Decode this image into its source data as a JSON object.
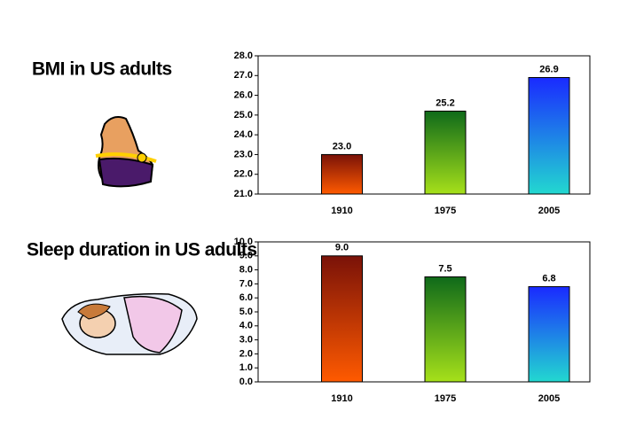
{
  "chart_data": [
    {
      "type": "bar",
      "title": "BMI in US adults",
      "categories": [
        "1910",
        "1975",
        "2005"
      ],
      "values": [
        23.0,
        25.2,
        26.9
      ],
      "value_labels": [
        "23.0",
        "25.2",
        "26.9"
      ],
      "colors": [
        [
          "#7a1208",
          "#ff5a00"
        ],
        [
          "#0f6a1a",
          "#a6e01a"
        ],
        [
          "#1a2aff",
          "#22d8d0"
        ]
      ],
      "ylim": [
        21,
        28
      ],
      "yticks": [
        {
          "value": 21,
          "label": "21.0"
        },
        {
          "value": 22,
          "label": "22.0"
        },
        {
          "value": 23,
          "label": "23.0"
        },
        {
          "value": 24,
          "label": "24.0"
        },
        {
          "value": 25,
          "label": "25.0"
        },
        {
          "value": 26,
          "label": "26.0"
        },
        {
          "value": 27,
          "label": "27.0"
        },
        {
          "value": 28,
          "label": "28.0"
        }
      ]
    },
    {
      "type": "bar",
      "title": "Sleep duration in US adults",
      "categories": [
        "1910",
        "1975",
        "2005"
      ],
      "values": [
        9.0,
        7.5,
        6.8
      ],
      "value_labels": [
        "9.0",
        "7.5",
        "6.8"
      ],
      "colors": [
        [
          "#7a1208",
          "#ff5a00"
        ],
        [
          "#0f6a1a",
          "#a6e01a"
        ],
        [
          "#1a2aff",
          "#22d8d0"
        ]
      ],
      "ylim": [
        0,
        10
      ],
      "yticks": [
        {
          "value": 0,
          "label": "0.0"
        },
        {
          "value": 1,
          "label": "1.0"
        },
        {
          "value": 2,
          "label": "2.0"
        },
        {
          "value": 3,
          "label": "3.0"
        },
        {
          "value": 4,
          "label": "4.0"
        },
        {
          "value": 5,
          "label": "5.0"
        },
        {
          "value": 6,
          "label": "6.0"
        },
        {
          "value": 7,
          "label": "7.0"
        },
        {
          "value": 8,
          "label": "8.0"
        },
        {
          "value": 9,
          "label": "9.0"
        },
        {
          "value": 10,
          "label": "10.0"
        }
      ]
    }
  ]
}
